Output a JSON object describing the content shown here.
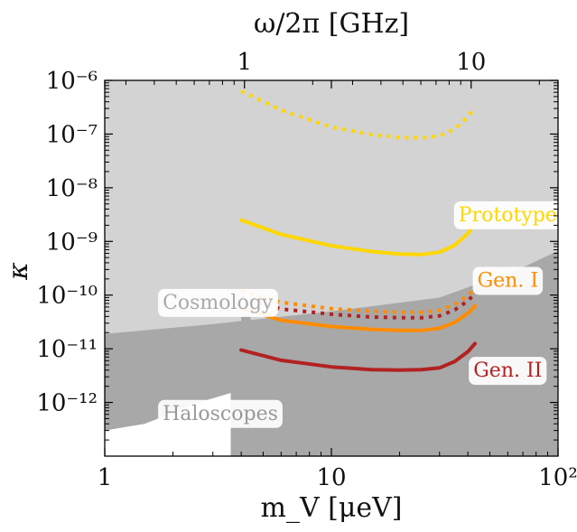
{
  "chart_data": {
    "type": "line",
    "title": "",
    "xlabel": "m_V [μeV]",
    "ylabel": "κ",
    "x2label": "ω/2π [GHz]",
    "xscale": "log",
    "yscale": "log",
    "xlim": [
      1,
      100
    ],
    "ylim": [
      1e-13,
      1e-06
    ],
    "x2lim": [
      0.2418,
      24.18
    ],
    "x_ticks": [
      {
        "value": 1,
        "label": "1"
      },
      {
        "value": 10,
        "label": "10"
      },
      {
        "value": 100,
        "label": "10²"
      }
    ],
    "x2_ticks": [
      {
        "value": 1,
        "label": "1"
      },
      {
        "value": 10,
        "label": "10"
      }
    ],
    "y_ticks": [
      {
        "value": 1e-12,
        "label": "10⁻¹²"
      },
      {
        "value": 1e-11,
        "label": "10⁻¹¹"
      },
      {
        "value": 1e-10,
        "label": "10⁻¹⁰"
      },
      {
        "value": 1e-09,
        "label": "10⁻⁹"
      },
      {
        "value": 1e-08,
        "label": "10⁻⁸"
      },
      {
        "value": 1e-07,
        "label": "10⁻⁷"
      },
      {
        "value": 1e-06,
        "label": "10⁻⁶"
      }
    ],
    "regions": [
      {
        "name": "Cosmology",
        "color": "#d3d3d3",
        "boundary": [
          [
            1,
            1.9e-11
          ],
          [
            3,
            2.9e-11
          ],
          [
            10,
            5e-11
          ],
          [
            30,
            9e-11
          ],
          [
            70,
            3.3e-10
          ],
          [
            100,
            6.7e-10
          ]
        ]
      },
      {
        "name": "Haloscopes",
        "color": "#a8a8a8",
        "bands": [
          {
            "x": [
              3.6,
              4.9
            ],
            "y": [
              1e-13,
              5e-12
            ]
          },
          {
            "x": [
              4.0,
              4.4
            ],
            "y": [
              5e-12,
              4e-11
            ]
          },
          {
            "x": [
              6.4,
              6.6
            ],
            "y": [
              1e-13,
              4e-11
            ]
          },
          {
            "x": [
              8.5,
              11.0
            ],
            "y": [
              5e-12,
              4e-11
            ]
          },
          {
            "x": [
              9.7,
              10.1
            ],
            "y": [
              1e-13,
              5e-12
            ]
          },
          {
            "x": [
              12.6,
              13.0
            ],
            "y": [
              1e-13,
              4e-11
            ]
          },
          {
            "x": [
              14.6,
              14.8
            ],
            "y": [
              1e-13,
              4e-11
            ]
          },
          {
            "x": [
              16.0,
              23.0
            ],
            "y": [
              6e-12,
              4e-11
            ]
          },
          {
            "x": [
              25.0,
              31.0
            ],
            "y": [
              1e-13,
              4e-11
            ]
          },
          {
            "x": [
              43.5,
              67.0
            ],
            "y": [
              3e-12,
              3e-11
            ]
          },
          {
            "x": [
              44.0,
              66.0
            ],
            "y": [
              8e-13,
              9e-13
            ]
          }
        ]
      }
    ],
    "series": [
      {
        "name": "Prototype",
        "color": "#ffd700",
        "style": "solid",
        "x": [
          4,
          6,
          10,
          15,
          20,
          25,
          30,
          35,
          40,
          43
        ],
        "y": [
          2.5e-09,
          1.35e-09,
          8.3e-10,
          6.5e-10,
          5.8e-10,
          5.7e-10,
          6.3e-10,
          8.5e-10,
          1.4e-09,
          2.2e-09
        ]
      },
      {
        "name": "",
        "color": "#ffd700",
        "style": "dotted",
        "x": [
          4,
          6,
          10,
          15,
          20,
          25,
          30,
          35,
          40,
          43
        ],
        "y": [
          6.3e-07,
          2.8e-07,
          1.35e-07,
          9.8e-08,
          8.6e-08,
          8.5e-08,
          9.2e-08,
          1.25e-07,
          2.1e-07,
          3.2e-07
        ]
      },
      {
        "name": "Gen. I",
        "color": "#ff8c00",
        "style": "solid",
        "x": [
          4,
          6,
          10,
          15,
          20,
          25,
          30,
          35,
          40,
          43
        ],
        "y": [
          5.8e-11,
          3.4e-11,
          2.6e-11,
          2.3e-11,
          2.2e-11,
          2.2e-11,
          2.4e-11,
          3.1e-11,
          4.6e-11,
          6.3e-11
        ]
      },
      {
        "name": "",
        "color": "#ff8c00",
        "style": "dotted",
        "x": [
          4,
          6,
          10,
          15,
          20,
          25,
          30,
          35,
          40,
          43
        ],
        "y": [
          1.2e-10,
          7.3e-11,
          5.6e-11,
          5e-11,
          4.8e-11,
          4.8e-11,
          5.2e-11,
          6.7e-11,
          9.8e-11,
          1.35e-10
        ]
      },
      {
        "name": "Gen. II",
        "color": "#b22222",
        "style": "solid",
        "x": [
          4,
          6,
          10,
          15,
          20,
          25,
          30,
          35,
          40,
          43
        ],
        "y": [
          9.5e-12,
          6.1e-12,
          4.6e-12,
          4.1e-12,
          4e-12,
          4.1e-12,
          4.4e-12,
          5.8e-12,
          8.8e-12,
          1.25e-11
        ]
      },
      {
        "name": "",
        "color": "#b22222",
        "style": "dotted",
        "x": [
          4,
          6,
          10,
          15,
          20,
          25,
          30,
          35,
          40,
          43
        ],
        "y": [
          9e-11,
          5.5e-11,
          4.4e-11,
          3.9e-11,
          3.8e-11,
          3.8e-11,
          4.1e-11,
          5.3e-11,
          7.8e-11,
          1.07e-10
        ]
      }
    ],
    "annotations": [
      {
        "text": "Prototype",
        "color": "#ffd700",
        "x": 60,
        "y": 3e-09
      },
      {
        "text": "Gen. I",
        "color": "#ff8c00",
        "x": 60,
        "y": 1.8e-10
      },
      {
        "text": "Gen. II",
        "color": "#b22222",
        "x": 60,
        "y": 3.8e-12
      },
      {
        "text": "Cosmology",
        "color": "#aaaaaa",
        "x": 1.8,
        "y": 7e-11
      },
      {
        "text": "Haloscopes",
        "color": "#999999",
        "x": 1.8,
        "y": 6e-13
      }
    ],
    "grid": false,
    "legend": "none"
  }
}
